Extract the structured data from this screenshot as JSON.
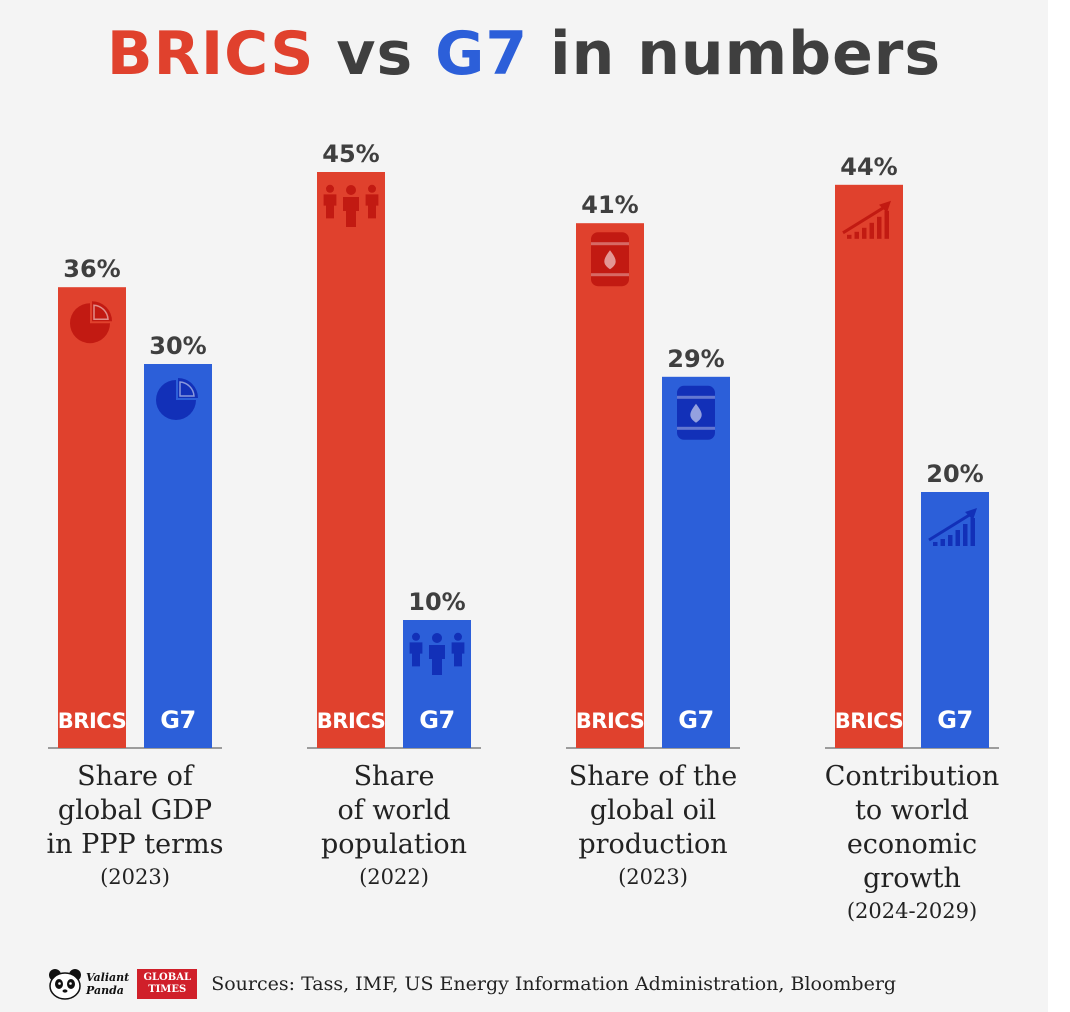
{
  "title": {
    "part1": "BRICS",
    "part2": " vs ",
    "part3": "G7",
    "part4": " in numbers"
  },
  "colors": {
    "brics": "#e0412d",
    "g7": "#2c5fd9",
    "brics_icon": "#c21a12",
    "g7_icon": "#1230b8"
  },
  "chart_data": {
    "type": "bar",
    "title": "BRICS vs G7 in numbers",
    "series_names": [
      "BRICS",
      "G7"
    ],
    "ylim": [
      0,
      50
    ],
    "grid": false,
    "legend": "none",
    "groups": [
      {
        "label_lines": [
          "Share of",
          "global GDP",
          "in PPP terms"
        ],
        "year": "(2023)",
        "icon": "pie-chart-icon",
        "bars": [
          {
            "series": "BRICS",
            "value": 36,
            "label": "36%"
          },
          {
            "series": "G7",
            "value": 30,
            "label": "30%"
          }
        ]
      },
      {
        "label_lines": [
          "Share",
          "of world",
          "population"
        ],
        "year": "(2022)",
        "icon": "people-icon",
        "bars": [
          {
            "series": "BRICS",
            "value": 45,
            "label": "45%"
          },
          {
            "series": "G7",
            "value": 10,
            "label": "10%"
          }
        ]
      },
      {
        "label_lines": [
          "Share of the",
          "global oil",
          "production"
        ],
        "year": "(2023)",
        "icon": "oil-barrel-icon",
        "bars": [
          {
            "series": "BRICS",
            "value": 41,
            "label": "41%"
          },
          {
            "series": "G7",
            "value": 29,
            "label": "29%"
          }
        ]
      },
      {
        "label_lines": [
          "Contribution",
          "to world",
          "economic",
          "growth"
        ],
        "year": "(2024-2029)",
        "icon": "growth-chart-icon",
        "bars": [
          {
            "series": "BRICS",
            "value": 44,
            "label": "44%"
          },
          {
            "series": "G7",
            "value": 20,
            "label": "20%"
          }
        ]
      }
    ]
  },
  "footer": {
    "logo_valiant_line1": "Valiant",
    "logo_valiant_line2": "Panda",
    "logo_gt_line1": "GLOBAL",
    "logo_gt_line2": "TIMES",
    "sources": "Sources: Tass, IMF, US Energy Information Administration, Bloomberg"
  }
}
